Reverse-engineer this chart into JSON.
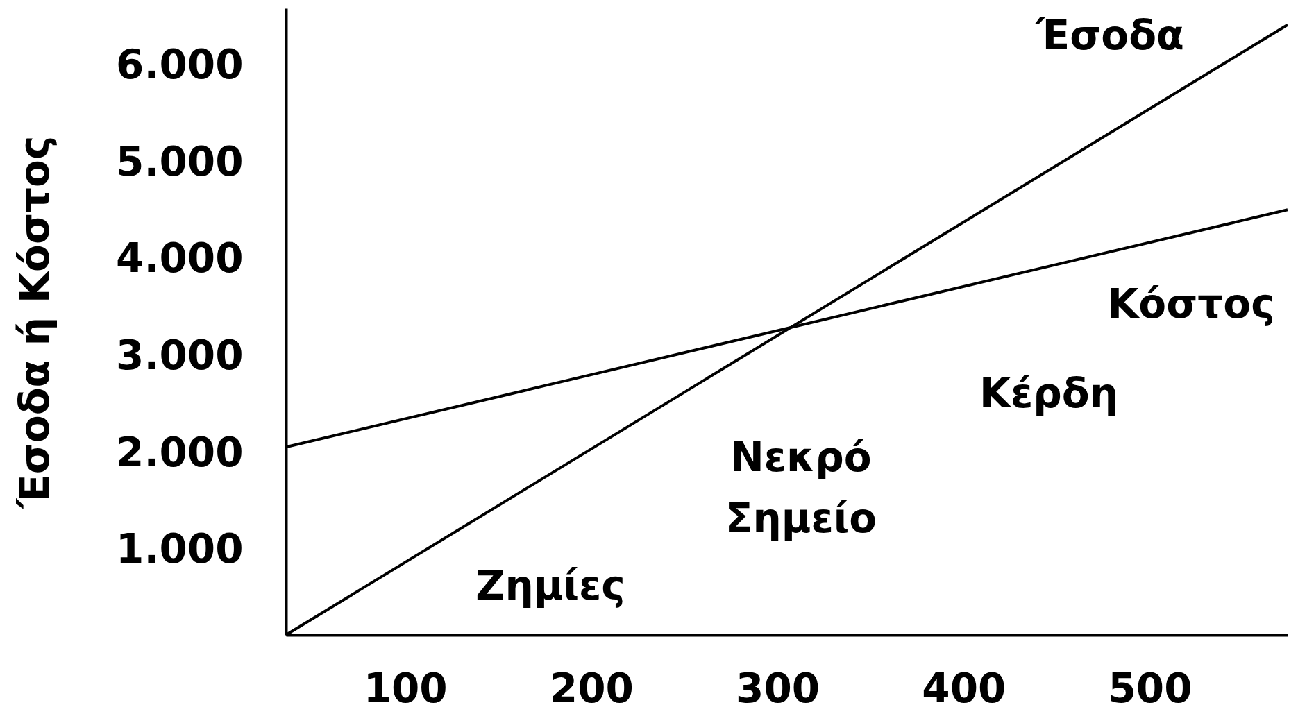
{
  "chart_data": {
    "type": "line",
    "ylabel": "Έσοδα ή Κόστος",
    "x": [
      36,
      574
    ],
    "series": [
      {
        "name": "Έσοδα",
        "color": "#000000",
        "values": [
          130,
          6430
        ]
      },
      {
        "name": "Κόστος",
        "color": "#000000",
        "values": [
          2070,
          4520
        ]
      }
    ],
    "xlim": [
      36,
      574
    ],
    "ylim": [
      130,
      6600
    ],
    "xticks": [
      100,
      200,
      300,
      400,
      500
    ],
    "yticks": [
      {
        "value": 1000,
        "label": "1.000"
      },
      {
        "value": 2000,
        "label": "2.000"
      },
      {
        "value": 3000,
        "label": "3.000"
      },
      {
        "value": 4000,
        "label": "4.000"
      },
      {
        "value": 5000,
        "label": "5.000"
      },
      {
        "value": 6000,
        "label": "6.000"
      }
    ],
    "annotations": [
      "Ζημίες",
      "Νεκρό Σημείο",
      "Κέρδη"
    ],
    "grid": false,
    "legend": false,
    "marker": "none",
    "line_style": "solid"
  }
}
